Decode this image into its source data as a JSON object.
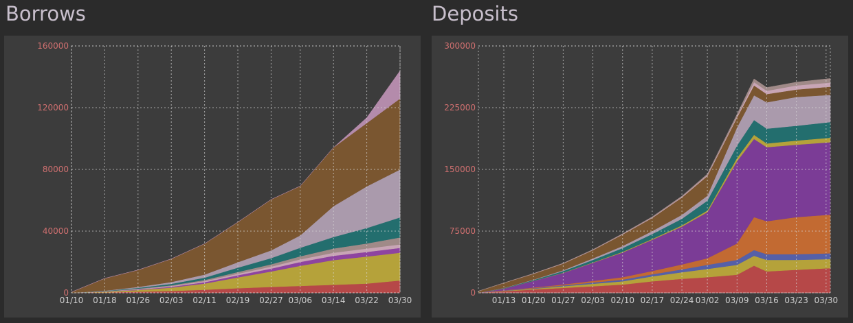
{
  "colors": {
    "background": "#2b2b2b",
    "panel": "#3c3c3c",
    "grid": "#d8d8d8",
    "ytick": "#d07070",
    "xtick": "#cfcfcf"
  },
  "chart_data": [
    {
      "title": "Borrows",
      "type": "area",
      "stacked": true,
      "ylim": [
        0,
        160000
      ],
      "yticks": [
        "0",
        "40000",
        "80000",
        "120000",
        "160000"
      ],
      "xlim": [
        "01/10",
        "03/30"
      ],
      "xticks": [
        "01/10",
        "01/18",
        "01/26",
        "02/03",
        "02/11",
        "02/19",
        "02/27",
        "03/06",
        "03/14",
        "03/22",
        "03/30"
      ],
      "x": [
        "01/10",
        "01/18",
        "01/26",
        "02/03",
        "02/11",
        "02/19",
        "02/27",
        "03/06",
        "03/14",
        "03/22",
        "03/30"
      ],
      "grid": true,
      "series": [
        {
          "color": "#b64848",
          "values": [
            0,
            300,
            700,
            1200,
            2000,
            3000,
            3800,
            4500,
            5200,
            6000,
            8000
          ]
        },
        {
          "color": "#b5a23a",
          "values": [
            0,
            400,
            1100,
            2200,
            4000,
            7000,
            10000,
            13000,
            16000,
            17500,
            18000
          ]
        },
        {
          "color": "#8e44a0",
          "values": [
            0,
            100,
            300,
            500,
            900,
            1400,
            1900,
            2500,
            2800,
            3000,
            3100
          ]
        },
        {
          "color": "#c8a5b5",
          "values": [
            0,
            100,
            300,
            500,
            700,
            1000,
            1300,
            1700,
            2000,
            2200,
            2300
          ]
        },
        {
          "color": "#a08a88",
          "values": [
            0,
            100,
            300,
            500,
            700,
            1100,
            1500,
            2000,
            2700,
            3300,
            4500
          ]
        },
        {
          "color": "#236e6e",
          "values": [
            0,
            200,
            500,
            900,
            1500,
            2800,
            4000,
            5500,
            7500,
            10000,
            13000
          ]
        },
        {
          "color": "#aa9aac",
          "values": [
            0,
            200,
            600,
            1200,
            2000,
            3500,
            5000,
            8000,
            20000,
            27000,
            31000
          ]
        },
        {
          "color": "#7a5630",
          "values": [
            500,
            8000,
            11000,
            15000,
            20000,
            26000,
            33000,
            32000,
            38000,
            41000,
            46000
          ]
        },
        {
          "color": "#b48bab",
          "values": [
            0,
            0,
            0,
            0,
            0,
            0,
            0,
            0,
            0,
            3500,
            18000
          ]
        }
      ]
    },
    {
      "title": "Deposits",
      "type": "area",
      "stacked": true,
      "ylim": [
        0,
        300000
      ],
      "yticks": [
        "0",
        "75000",
        "150000",
        "225000",
        "300000"
      ],
      "xlim": [
        "01/07",
        "03/31"
      ],
      "xticks": [
        "01/13",
        "01/20",
        "01/27",
        "02/03",
        "02/10",
        "02/17",
        "02/24",
        "03/02",
        "03/09",
        "03/16",
        "03/23",
        "03/30"
      ],
      "x": [
        "01/07",
        "01/13",
        "01/20",
        "01/27",
        "02/03",
        "02/10",
        "02/17",
        "02/24",
        "03/02",
        "03/09",
        "03/13",
        "03/16",
        "03/23",
        "03/31"
      ],
      "grid": true,
      "series": [
        {
          "color": "#b64848",
          "values": [
            0,
            2000,
            4000,
            6000,
            8000,
            10000,
            14000,
            17000,
            19000,
            22000,
            33000,
            26000,
            28000,
            30000
          ]
        },
        {
          "color": "#b5a23a",
          "values": [
            0,
            500,
            1000,
            2000,
            3000,
            4000,
            6000,
            8000,
            10000,
            12000,
            12000,
            14000,
            12000,
            11000
          ]
        },
        {
          "color": "#5560a8",
          "values": [
            0,
            300,
            600,
            1000,
            1500,
            2000,
            2500,
            3500,
            5000,
            6000,
            7000,
            7000,
            7000,
            7000
          ]
        },
        {
          "color": "#c26a32",
          "values": [
            0,
            300,
            800,
            1200,
            2000,
            3000,
            4000,
            6000,
            8000,
            20000,
            40000,
            40000,
            45000,
            47000
          ]
        },
        {
          "color": "#7b3c96",
          "values": [
            0,
            2000,
            8000,
            14000,
            22000,
            30000,
            38000,
            46000,
            56000,
            100000,
            95000,
            90000,
            88000,
            88000
          ]
        },
        {
          "color": "#b5a23a",
          "values": [
            0,
            100,
            200,
            300,
            500,
            800,
            1000,
            1500,
            2000,
            4000,
            5000,
            4500,
            5000,
            5500
          ]
        },
        {
          "color": "#236e6e",
          "values": [
            0,
            500,
            1000,
            2000,
            3000,
            4500,
            6000,
            8000,
            12000,
            15000,
            18000,
            18000,
            18000,
            19000
          ]
        },
        {
          "color": "#aa9aac",
          "values": [
            0,
            200,
            500,
            1000,
            1800,
            2500,
            3500,
            4800,
            6000,
            22000,
            30000,
            32000,
            35000,
            33000
          ]
        },
        {
          "color": "#7a5630",
          "values": [
            2000,
            6000,
            7000,
            8000,
            10000,
            14000,
            16000,
            21000,
            24000,
            12000,
            12000,
            10000,
            9000,
            10000
          ]
        },
        {
          "color": "#c8a5b5",
          "values": [
            0,
            100,
            200,
            300,
            400,
            500,
            700,
            900,
            1200,
            1500,
            4000,
            4000,
            5000,
            5000
          ]
        },
        {
          "color": "#a08a88",
          "values": [
            0,
            100,
            200,
            300,
            400,
            500,
            700,
            900,
            1200,
            2500,
            4000,
            4000,
            4000,
            5000
          ]
        }
      ]
    }
  ]
}
